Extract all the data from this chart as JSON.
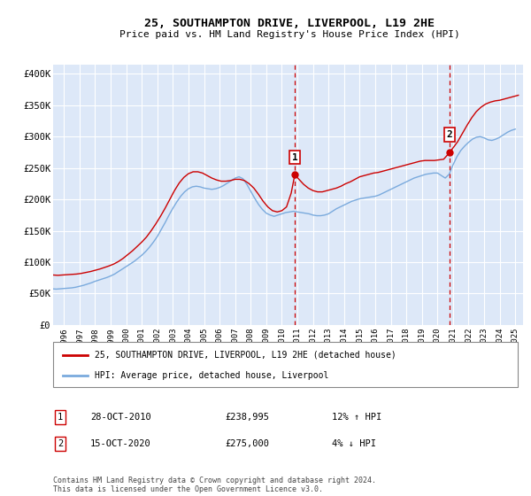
{
  "title": "25, SOUTHAMPTON DRIVE, LIVERPOOL, L19 2HE",
  "subtitle": "Price paid vs. HM Land Registry's House Price Index (HPI)",
  "bg_color": "#dde8f8",
  "ylabel_ticks": [
    "£0",
    "£50K",
    "£100K",
    "£150K",
    "£200K",
    "£250K",
    "£300K",
    "£350K",
    "£400K"
  ],
  "ytick_vals": [
    0,
    50000,
    100000,
    150000,
    200000,
    250000,
    300000,
    350000,
    400000
  ],
  "ylim": [
    0,
    415000
  ],
  "xlim_start": 1995.3,
  "xlim_end": 2025.5,
  "xtick_years": [
    1996,
    1997,
    1998,
    1999,
    2000,
    2001,
    2002,
    2003,
    2004,
    2005,
    2006,
    2007,
    2008,
    2009,
    2010,
    2011,
    2012,
    2013,
    2014,
    2015,
    2016,
    2017,
    2018,
    2019,
    2020,
    2021,
    2022,
    2023,
    2024,
    2025
  ],
  "marker1_x": 2010.83,
  "marker1_y": 238995,
  "marker1_label": "1",
  "marker1_date": "28-OCT-2010",
  "marker1_price": "£238,995",
  "marker1_hpi": "12% ↑ HPI",
  "marker2_x": 2020.79,
  "marker2_y": 275000,
  "marker2_label": "2",
  "marker2_date": "15-OCT-2020",
  "marker2_price": "£275,000",
  "marker2_hpi": "4% ↓ HPI",
  "red_line_color": "#cc0000",
  "blue_line_color": "#7aaadd",
  "marker_box_color": "#cc0000",
  "dashed_line_color": "#cc0000",
  "legend_label_red": "25, SOUTHAMPTON DRIVE, LIVERPOOL, L19 2HE (detached house)",
  "legend_label_blue": "HPI: Average price, detached house, Liverpool",
  "footer_text": "Contains HM Land Registry data © Crown copyright and database right 2024.\nThis data is licensed under the Open Government Licence v3.0.",
  "hpi_data_x": [
    1995.0,
    1995.25,
    1995.5,
    1995.75,
    1996.0,
    1996.25,
    1996.5,
    1996.75,
    1997.0,
    1997.25,
    1997.5,
    1997.75,
    1998.0,
    1998.25,
    1998.5,
    1998.75,
    1999.0,
    1999.25,
    1999.5,
    1999.75,
    2000.0,
    2000.25,
    2000.5,
    2000.75,
    2001.0,
    2001.25,
    2001.5,
    2001.75,
    2002.0,
    2002.25,
    2002.5,
    2002.75,
    2003.0,
    2003.25,
    2003.5,
    2003.75,
    2004.0,
    2004.25,
    2004.5,
    2004.75,
    2005.0,
    2005.25,
    2005.5,
    2005.75,
    2006.0,
    2006.25,
    2006.5,
    2006.75,
    2007.0,
    2007.25,
    2007.5,
    2007.75,
    2008.0,
    2008.25,
    2008.5,
    2008.75,
    2009.0,
    2009.25,
    2009.5,
    2009.75,
    2010.0,
    2010.25,
    2010.5,
    2010.75,
    2011.0,
    2011.25,
    2011.5,
    2011.75,
    2012.0,
    2012.25,
    2012.5,
    2012.75,
    2013.0,
    2013.25,
    2013.5,
    2013.75,
    2014.0,
    2014.25,
    2014.5,
    2014.75,
    2015.0,
    2015.25,
    2015.5,
    2015.75,
    2016.0,
    2016.25,
    2016.5,
    2016.75,
    2017.0,
    2017.25,
    2017.5,
    2017.75,
    2018.0,
    2018.25,
    2018.5,
    2018.75,
    2019.0,
    2019.25,
    2019.5,
    2019.75,
    2020.0,
    2020.25,
    2020.5,
    2020.75,
    2021.0,
    2021.25,
    2021.5,
    2021.75,
    2022.0,
    2022.25,
    2022.5,
    2022.75,
    2023.0,
    2023.25,
    2023.5,
    2023.75,
    2024.0,
    2024.25,
    2024.5,
    2024.75,
    2025.0
  ],
  "hpi_data_y": [
    58000,
    57500,
    57000,
    57500,
    58000,
    58500,
    59000,
    60000,
    61500,
    63000,
    65000,
    67000,
    69500,
    71500,
    73500,
    75500,
    78000,
    81000,
    85000,
    89000,
    93000,
    97000,
    101000,
    106000,
    111000,
    117000,
    124000,
    132000,
    141000,
    152000,
    163000,
    175000,
    186000,
    196000,
    205000,
    212000,
    217000,
    220000,
    221000,
    220000,
    218000,
    217000,
    216000,
    217000,
    219000,
    222000,
    226000,
    230000,
    234000,
    236000,
    233000,
    224000,
    213000,
    202000,
    192000,
    184000,
    178000,
    175000,
    173000,
    175000,
    177000,
    179000,
    180000,
    181000,
    180000,
    179000,
    178000,
    177000,
    175000,
    174000,
    174000,
    175000,
    177000,
    181000,
    185000,
    188000,
    191000,
    194000,
    197000,
    199000,
    201000,
    202000,
    203000,
    204000,
    205000,
    207000,
    210000,
    213000,
    216000,
    219000,
    222000,
    225000,
    228000,
    231000,
    234000,
    236000,
    238000,
    240000,
    241000,
    242000,
    242000,
    238000,
    234000,
    240000,
    255000,
    268000,
    278000,
    285000,
    291000,
    296000,
    299000,
    300000,
    298000,
    295000,
    294000,
    296000,
    299000,
    303000,
    307000,
    310000,
    312000
  ],
  "red_data_x": [
    1995.0,
    1995.3,
    1995.6,
    1995.9,
    1996.2,
    1996.5,
    1996.8,
    1997.1,
    1997.4,
    1997.7,
    1998.0,
    1998.3,
    1998.6,
    1998.9,
    1999.2,
    1999.5,
    1999.8,
    2000.1,
    2000.4,
    2000.7,
    2001.0,
    2001.3,
    2001.6,
    2001.9,
    2002.2,
    2002.5,
    2002.8,
    2003.1,
    2003.4,
    2003.7,
    2004.0,
    2004.3,
    2004.6,
    2004.9,
    2005.2,
    2005.5,
    2005.8,
    2006.1,
    2006.4,
    2006.7,
    2007.0,
    2007.3,
    2007.6,
    2007.9,
    2008.2,
    2008.5,
    2008.8,
    2009.1,
    2009.4,
    2009.7,
    2010.0,
    2010.3,
    2010.6,
    2010.83,
    2011.1,
    2011.4,
    2011.7,
    2012.0,
    2012.3,
    2012.6,
    2012.9,
    2013.2,
    2013.5,
    2013.8,
    2014.1,
    2014.4,
    2014.7,
    2015.0,
    2015.3,
    2015.6,
    2015.9,
    2016.2,
    2016.5,
    2016.8,
    2017.1,
    2017.4,
    2017.7,
    2018.0,
    2018.3,
    2018.6,
    2018.9,
    2019.2,
    2019.5,
    2019.8,
    2020.1,
    2020.4,
    2020.79,
    2021.0,
    2021.3,
    2021.6,
    2021.9,
    2022.2,
    2022.5,
    2022.8,
    2023.1,
    2023.4,
    2023.7,
    2024.0,
    2024.3,
    2024.6,
    2024.9,
    2025.2
  ],
  "red_data_y": [
    80000,
    79500,
    79000,
    79500,
    80000,
    80500,
    81000,
    82000,
    83500,
    85000,
    87000,
    89000,
    91500,
    94000,
    97000,
    101000,
    106000,
    112000,
    118000,
    125000,
    132000,
    140000,
    150000,
    161000,
    173000,
    186000,
    200000,
    214000,
    226000,
    235000,
    241000,
    244000,
    244000,
    242000,
    238000,
    234000,
    231000,
    229000,
    229000,
    230000,
    232000,
    232000,
    230000,
    225000,
    218000,
    208000,
    197000,
    188000,
    182000,
    180000,
    182000,
    188000,
    210000,
    238995,
    232000,
    224000,
    218000,
    214000,
    212000,
    212000,
    214000,
    216000,
    218000,
    221000,
    225000,
    228000,
    232000,
    236000,
    238000,
    240000,
    242000,
    243000,
    245000,
    247000,
    249000,
    251000,
    253000,
    255000,
    257000,
    259000,
    261000,
    262000,
    262000,
    262000,
    263000,
    264000,
    275000,
    282000,
    292000,
    305000,
    318000,
    330000,
    340000,
    347000,
    352000,
    355000,
    357000,
    358000,
    360000,
    362000,
    364000,
    366000
  ]
}
